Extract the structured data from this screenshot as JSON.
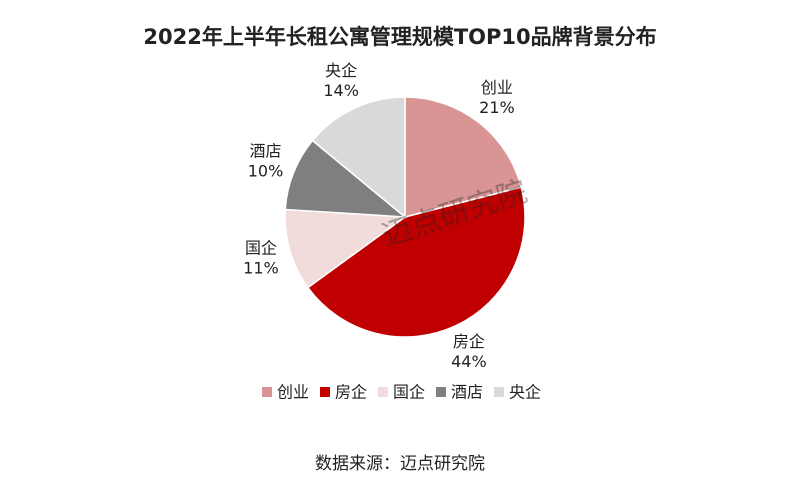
{
  "chart_data": {
    "type": "pie",
    "title": "2022年上半年长租公寓管理规模TOP10品牌背景分布",
    "categories": [
      "创业",
      "房企",
      "国企",
      "酒店",
      "央企"
    ],
    "values": [
      21,
      44,
      11,
      10,
      14
    ],
    "value_labels": [
      "21%",
      "44%",
      "11%",
      "10%",
      "14%"
    ],
    "colors": [
      "#d99594",
      "#c00000",
      "#f2dcdb",
      "#7f7f7f",
      "#d9d9d9"
    ],
    "legend": "bottom",
    "watermark": "迈点研究院",
    "source": "数据来源：迈点研究院"
  }
}
